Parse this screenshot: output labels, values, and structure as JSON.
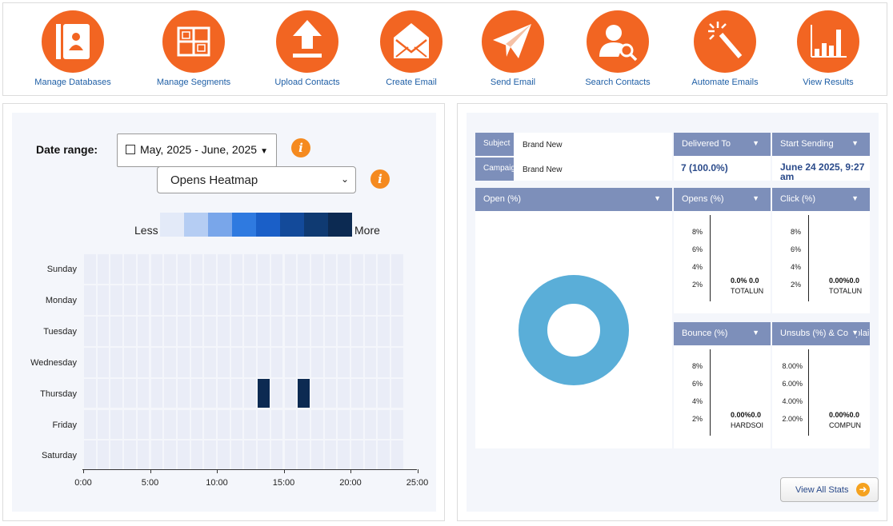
{
  "toolbar": {
    "items": [
      {
        "label": "Manage Databases",
        "icon": "address-book-icon"
      },
      {
        "label": "Manage Segments",
        "icon": "segments-grid-icon"
      },
      {
        "label": "Upload Contacts",
        "icon": "upload-arrow-icon"
      },
      {
        "label": "Create Email",
        "icon": "envelope-open-icon"
      },
      {
        "label": "Send Email",
        "icon": "paper-plane-icon"
      },
      {
        "label": "Search Contacts",
        "icon": "person-search-icon"
      },
      {
        "label": "Automate Emails",
        "icon": "magic-wand-icon"
      },
      {
        "label": "View Results",
        "icon": "bar-chart-icon"
      }
    ]
  },
  "heatmap": {
    "date_range_label": "Date range:",
    "date_range_value": "May, 2025 - June, 2025",
    "metric_select": "Opens Heatmap",
    "legend_less": "Less",
    "legend_more": "More",
    "legend_colors": [
      "#e3eaf8",
      "#b5cdf3",
      "#79a6ea",
      "#2f7ae0",
      "#1a5fc8",
      "#134a9a",
      "#0f3a72",
      "#0c2a52"
    ],
    "days": [
      "Sunday",
      "Monday",
      "Tuesday",
      "Wednesday",
      "Thursday",
      "Friday",
      "Saturday"
    ],
    "hour_ticks": [
      "0:00",
      "5:00",
      "10:00",
      "15:00",
      "20:00",
      "25:00"
    ],
    "active_cells": [
      {
        "day": "Thursday",
        "hour": 13,
        "level": 8
      },
      {
        "day": "Thursday",
        "hour": 16,
        "level": 8
      }
    ],
    "base_color": "#eaedf7",
    "hot_color": "#0c2a52"
  },
  "stats": {
    "subject_label": "Subject",
    "subject_value": "Brand New",
    "campaign_label": "Campaign",
    "campaign_value": "Brand New",
    "delivered_header": "Delivered To",
    "delivered_value": "7 (100.0%)",
    "start_header": "Start Sending",
    "start_value": "June 24 2025, 9:27 am",
    "open_header": "Open (%)",
    "opens_header": "Opens (%)",
    "click_header": "Click (%)",
    "bounce_header": "Bounce (%)",
    "unsubs_header": "Unsubs (%) & Complaints",
    "donut_color": "#5aaed8",
    "opens_chart": {
      "y_ticks": [
        "8%",
        "6%",
        "4%",
        "2%"
      ],
      "val1": "0.0%",
      "val2": "0.0",
      "lbl1": "TOTAL",
      "lbl2": "UN"
    },
    "click_chart": {
      "y_ticks": [
        "8%",
        "6%",
        "4%",
        "2%"
      ],
      "val1": "0.00%",
      "val2": "0.0",
      "lbl1": "TOTAL",
      "lbl2": "UN"
    },
    "bounce_chart": {
      "y_ticks": [
        "8%",
        "6%",
        "4%",
        "2%"
      ],
      "val1": "0.00%",
      "val2": "0.0",
      "lbl1": "HARD",
      "lbl2": "SOI"
    },
    "unsubs_chart": {
      "y_ticks": [
        "8.00%",
        "6.00%",
        "4.00%",
        "2.00%"
      ],
      "val1": "0.00%",
      "val2": "0.0",
      "lbl1": "COMP",
      "lbl2": "UN"
    },
    "view_all": "View All Stats"
  }
}
